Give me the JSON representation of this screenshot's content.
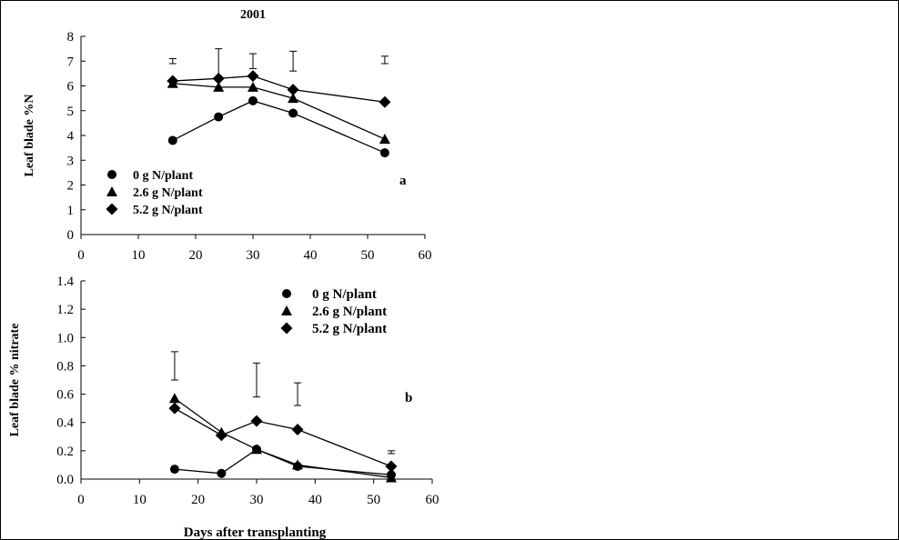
{
  "chart_data": [
    {
      "type": "line",
      "panel_title": "2001",
      "panel_letter": "a",
      "ylabel": "Leaf blade %N",
      "xlabel": "",
      "xlim": [
        0,
        60
      ],
      "ylim": [
        0,
        8
      ],
      "xticks": [
        0,
        10,
        20,
        30,
        40,
        50,
        60
      ],
      "yticks": [
        0,
        1,
        2,
        3,
        4,
        5,
        6,
        7,
        8
      ],
      "ytick_labels": [
        "0",
        "1",
        "2",
        "3",
        "4",
        "5",
        "6",
        "7",
        "8"
      ],
      "legend": "bottom-left",
      "x": [
        16,
        24,
        30,
        37,
        53
      ],
      "series": [
        {
          "name": "0 g N/plant",
          "marker": "circle",
          "values": [
            3.8,
            4.75,
            5.4,
            4.9,
            3.3
          ]
        },
        {
          "name": "2.6 g N/plant",
          "marker": "triangle",
          "values": [
            6.1,
            5.95,
            5.95,
            5.5,
            3.85
          ]
        },
        {
          "name": "5.2 g N/plant",
          "marker": "diamond",
          "values": [
            6.2,
            6.3,
            6.4,
            5.85,
            5.35
          ]
        }
      ],
      "error_bars": [
        {
          "x": 16,
          "low": 6.9,
          "high": 7.1
        },
        {
          "x": 24,
          "low": 6.3,
          "high": 7.5
        },
        {
          "x": 30,
          "low": 6.7,
          "high": 7.3
        },
        {
          "x": 37,
          "low": 6.6,
          "high": 7.4
        },
        {
          "x": 53,
          "low": 6.9,
          "high": 7.2
        }
      ]
    },
    {
      "type": "line",
      "panel_letter": "b",
      "ylabel": "Leaf blade % nitrate",
      "xlabel": "Days after transplanting",
      "xlim": [
        0,
        60
      ],
      "ylim": [
        0,
        1.4
      ],
      "xticks": [
        0,
        10,
        20,
        30,
        40,
        50,
        60
      ],
      "yticks": [
        0,
        0.2,
        0.4,
        0.6,
        0.8,
        1.0,
        1.2,
        1.4
      ],
      "ytick_labels": [
        "0.0",
        "0.2",
        "0.4",
        "0.6",
        "0.8",
        "1.0",
        "1.2",
        "1.4"
      ],
      "legend": "top-right",
      "x": [
        16,
        24,
        30,
        37,
        53
      ],
      "series": [
        {
          "name": "0 g N/plant",
          "marker": "circle",
          "values": [
            0.07,
            0.04,
            0.21,
            0.09,
            0.03
          ]
        },
        {
          "name": "2.6 g N/plant",
          "marker": "triangle",
          "values": [
            0.57,
            0.33,
            0.21,
            0.1,
            0.01
          ]
        },
        {
          "name": "5.2 g N/plant",
          "marker": "diamond",
          "values": [
            0.5,
            0.31,
            0.41,
            0.35,
            0.09
          ]
        }
      ],
      "error_bars": [
        {
          "x": 16,
          "low": 0.7,
          "high": 0.9
        },
        {
          "x": 30,
          "low": 0.58,
          "high": 0.82
        },
        {
          "x": 37,
          "low": 0.52,
          "high": 0.68
        },
        {
          "x": 53,
          "low": 0.18,
          "high": 0.2
        }
      ]
    }
  ]
}
